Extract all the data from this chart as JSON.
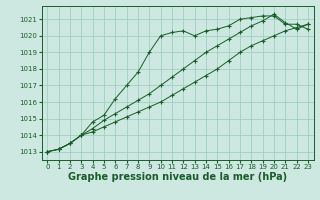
{
  "bg_color": "#cce8e0",
  "grid_color": "#99ccbb",
  "line_color": "#1a5c2a",
  "marker": "+",
  "xlabel": "Graphe pression niveau de la mer (hPa)",
  "xlabel_fontsize": 7,
  "ylim": [
    1012.5,
    1021.8
  ],
  "xlim": [
    -0.5,
    23.5
  ],
  "yticks": [
    1013,
    1014,
    1015,
    1016,
    1017,
    1018,
    1019,
    1020,
    1021
  ],
  "xticks": [
    0,
    1,
    2,
    3,
    4,
    5,
    6,
    7,
    8,
    9,
    10,
    11,
    12,
    13,
    14,
    15,
    16,
    17,
    18,
    19,
    20,
    21,
    22,
    23
  ],
  "series": [
    [
      1013.0,
      1013.15,
      1013.5,
      1014.0,
      1014.8,
      1015.2,
      1016.2,
      1017.0,
      1017.8,
      1019.0,
      1020.0,
      1020.2,
      1020.3,
      1020.0,
      1020.3,
      1020.4,
      1020.6,
      1021.0,
      1021.1,
      1021.2,
      1021.2,
      1020.7,
      1020.7,
      1020.4
    ],
    [
      1013.0,
      1013.15,
      1013.5,
      1014.0,
      1014.4,
      1014.9,
      1015.3,
      1015.7,
      1016.1,
      1016.5,
      1017.0,
      1017.5,
      1018.0,
      1018.5,
      1019.0,
      1019.4,
      1019.8,
      1020.2,
      1020.6,
      1020.9,
      1021.3,
      1020.8,
      1020.4,
      1020.7
    ],
    [
      1013.0,
      1013.15,
      1013.5,
      1014.0,
      1014.2,
      1014.5,
      1014.8,
      1015.1,
      1015.4,
      1015.7,
      1016.0,
      1016.4,
      1016.8,
      1017.2,
      1017.6,
      1018.0,
      1018.5,
      1019.0,
      1019.4,
      1019.7,
      1020.0,
      1020.3,
      1020.5,
      1020.7
    ]
  ]
}
